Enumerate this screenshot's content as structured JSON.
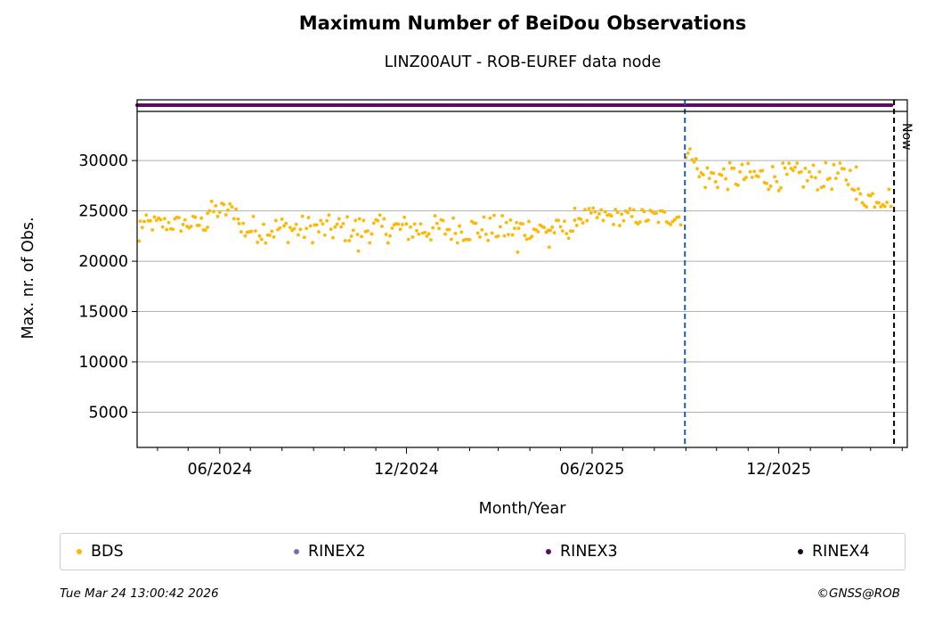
{
  "chart_data": {
    "type": "scatter",
    "title": "Maximum Number of BeiDou Observations",
    "subtitle": "LINZ00AUT - ROB-EUREF data node",
    "xlabel": "Month/Year",
    "ylabel": "Max. nr. of Obs.",
    "x_tick_labels": [
      "06/2024",
      "12/2024",
      "06/2025",
      "12/2025"
    ],
    "y_ticks": [
      5000,
      10000,
      15000,
      20000,
      25000,
      30000
    ],
    "ylim": [
      1500,
      34000
    ],
    "xlim": [
      "2024-03-12",
      "2026-04-06"
    ],
    "grid": "horizontal",
    "vertical_markers": [
      {
        "date": "2025-08-31",
        "color": "#1f5aa6",
        "style": "dashed",
        "label": ""
      },
      {
        "date": "2026-03-24",
        "color": "#000000",
        "style": "dashed",
        "label": "Now"
      }
    ],
    "series": [
      {
        "name": "BDS",
        "color": "#ffb700",
        "description": "daily max observations, ~22000-25000 until 2025-08, ~26000-31000 after",
        "segments": [
          {
            "from": "2024-03-15",
            "to": "2024-05-20",
            "low": 22800,
            "high": 24600
          },
          {
            "from": "2024-05-20",
            "to": "2024-06-20",
            "low": 24000,
            "high": 26000
          },
          {
            "from": "2024-06-20",
            "to": "2025-04-01",
            "low": 21800,
            "high": 24600
          },
          {
            "from": "2025-04-01",
            "to": "2025-05-15",
            "low": 22200,
            "high": 24200
          },
          {
            "from": "2025-05-15",
            "to": "2025-08-28",
            "low": 23500,
            "high": 25300
          },
          {
            "from": "2025-09-01",
            "to": "2025-09-12",
            "low": 29800,
            "high": 31300
          },
          {
            "from": "2025-09-12",
            "to": "2026-02-15",
            "low": 27000,
            "high": 29800
          },
          {
            "from": "2026-02-15",
            "to": "2026-03-22",
            "low": 25200,
            "high": 27500
          }
        ]
      },
      {
        "name": "RINEX2",
        "color": "#7570b3",
        "description": "no observations shown"
      },
      {
        "name": "RINEX3",
        "color": "#5b0a5d",
        "description": "availability strip at top",
        "from": "2024-03-12",
        "to": "2026-03-22"
      },
      {
        "name": "RINEX4",
        "color": "#1f0324",
        "description": "no observations shown"
      }
    ]
  },
  "legend": {
    "items": [
      {
        "label": "BDS",
        "color": "#ffb700"
      },
      {
        "label": "RINEX2",
        "color": "#7570b3"
      },
      {
        "label": "RINEX3",
        "color": "#5b0a5d"
      },
      {
        "label": "RINEX4",
        "color": "#1f0324"
      }
    ]
  },
  "footer": {
    "timestamp": "Tue Mar 24 13:00:42 2026",
    "copyright": "©GNSS@ROB"
  }
}
